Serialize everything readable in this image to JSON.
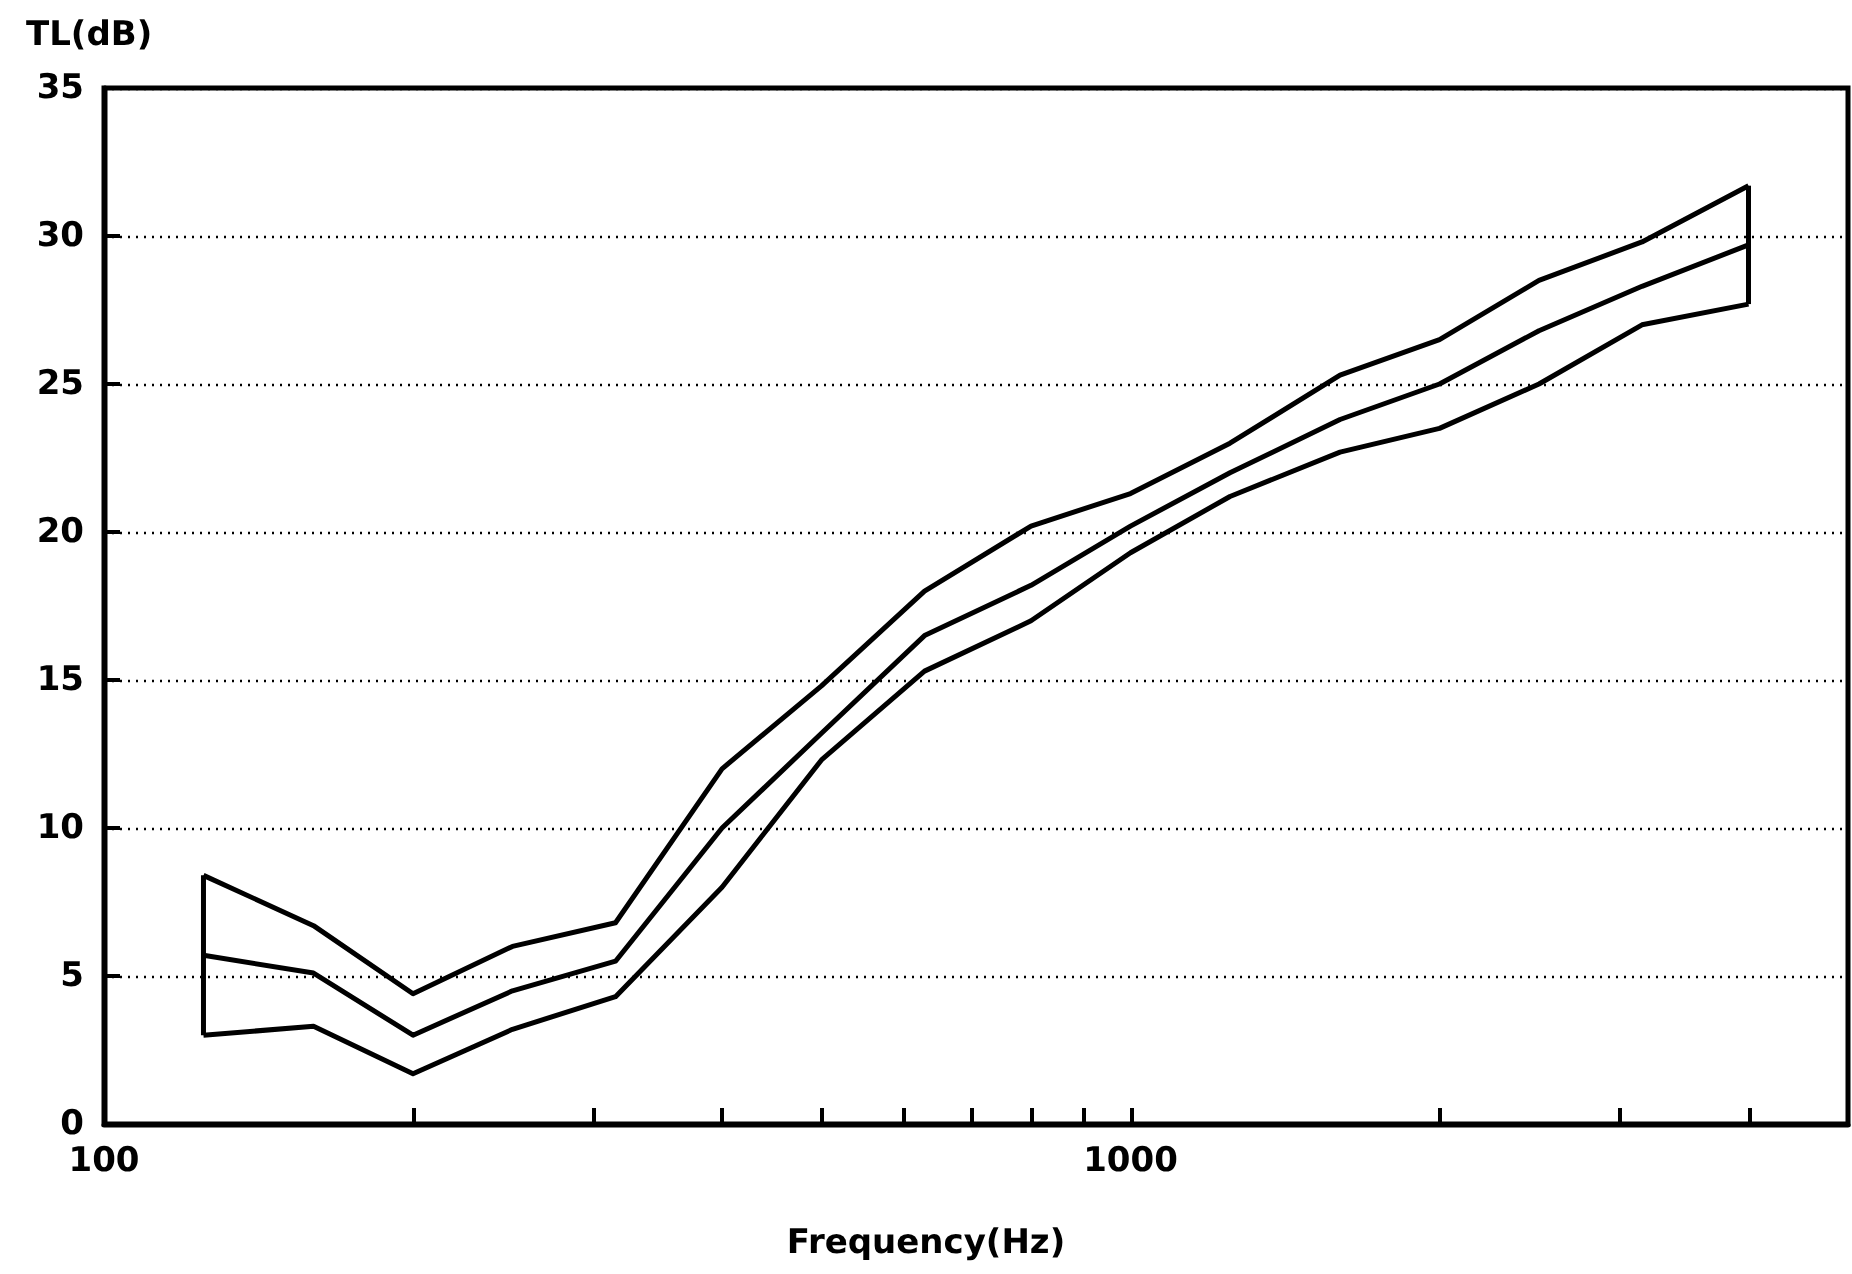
{
  "chart_data": {
    "type": "line",
    "xlabel": "Frequency(Hz)",
    "ylabel": "TL(dB)",
    "log": "x",
    "grid": "y",
    "marker": "none",
    "line_style": "solid",
    "x": [
      125,
      160,
      200,
      250,
      315,
      400,
      500,
      630,
      800,
      1000,
      1250,
      1600,
      2000,
      2500,
      3150,
      4000
    ],
    "series": [
      {
        "color": "#000000",
        "values": [
          8.4,
          6.7,
          4.4,
          6.0,
          6.8,
          12,
          14.8,
          18,
          20.2,
          21.3,
          23,
          25.3,
          26.5,
          28.5,
          29.8,
          31.7
        ]
      },
      {
        "color": "#000000",
        "values": [
          5.7,
          5.1,
          3.0,
          4.5,
          5.5,
          10,
          13.2,
          16.5,
          18.2,
          20.2,
          22,
          23.8,
          25,
          26.8,
          28.3,
          29.7
        ],
        "errors": [
          [
            3.0,
            8.4
          ],
          null,
          null,
          null,
          null,
          null,
          null,
          null,
          null,
          null,
          null,
          null,
          null,
          null,
          null,
          [
            27.7,
            31.7
          ]
        ]
      },
      {
        "color": "#000000",
        "values": [
          3.0,
          3.3,
          1.7,
          3.2,
          4.3,
          8,
          12.3,
          15.3,
          17,
          19.3,
          21.2,
          22.7,
          23.5,
          25,
          27,
          27.7
        ]
      }
    ],
    "xlim": [
      100,
      5000
    ],
    "ylim": [
      0,
      35
    ],
    "xticks": [
      100,
      {
        "value": 200,
        "label": null
      },
      {
        "value": 300,
        "label": null
      },
      {
        "value": 400,
        "label": null
      },
      {
        "value": 500,
        "label": null
      },
      {
        "value": 600,
        "label": null
      },
      {
        "value": 700,
        "label": null
      },
      {
        "value": 800,
        "label": null
      },
      {
        "value": 900,
        "label": null
      },
      1000,
      {
        "value": 2000,
        "label": null
      },
      {
        "value": 3000,
        "label": null
      },
      {
        "value": 4000,
        "label": null
      }
    ],
    "yticks": [
      0,
      5,
      10,
      15,
      20,
      25,
      30,
      35
    ]
  }
}
